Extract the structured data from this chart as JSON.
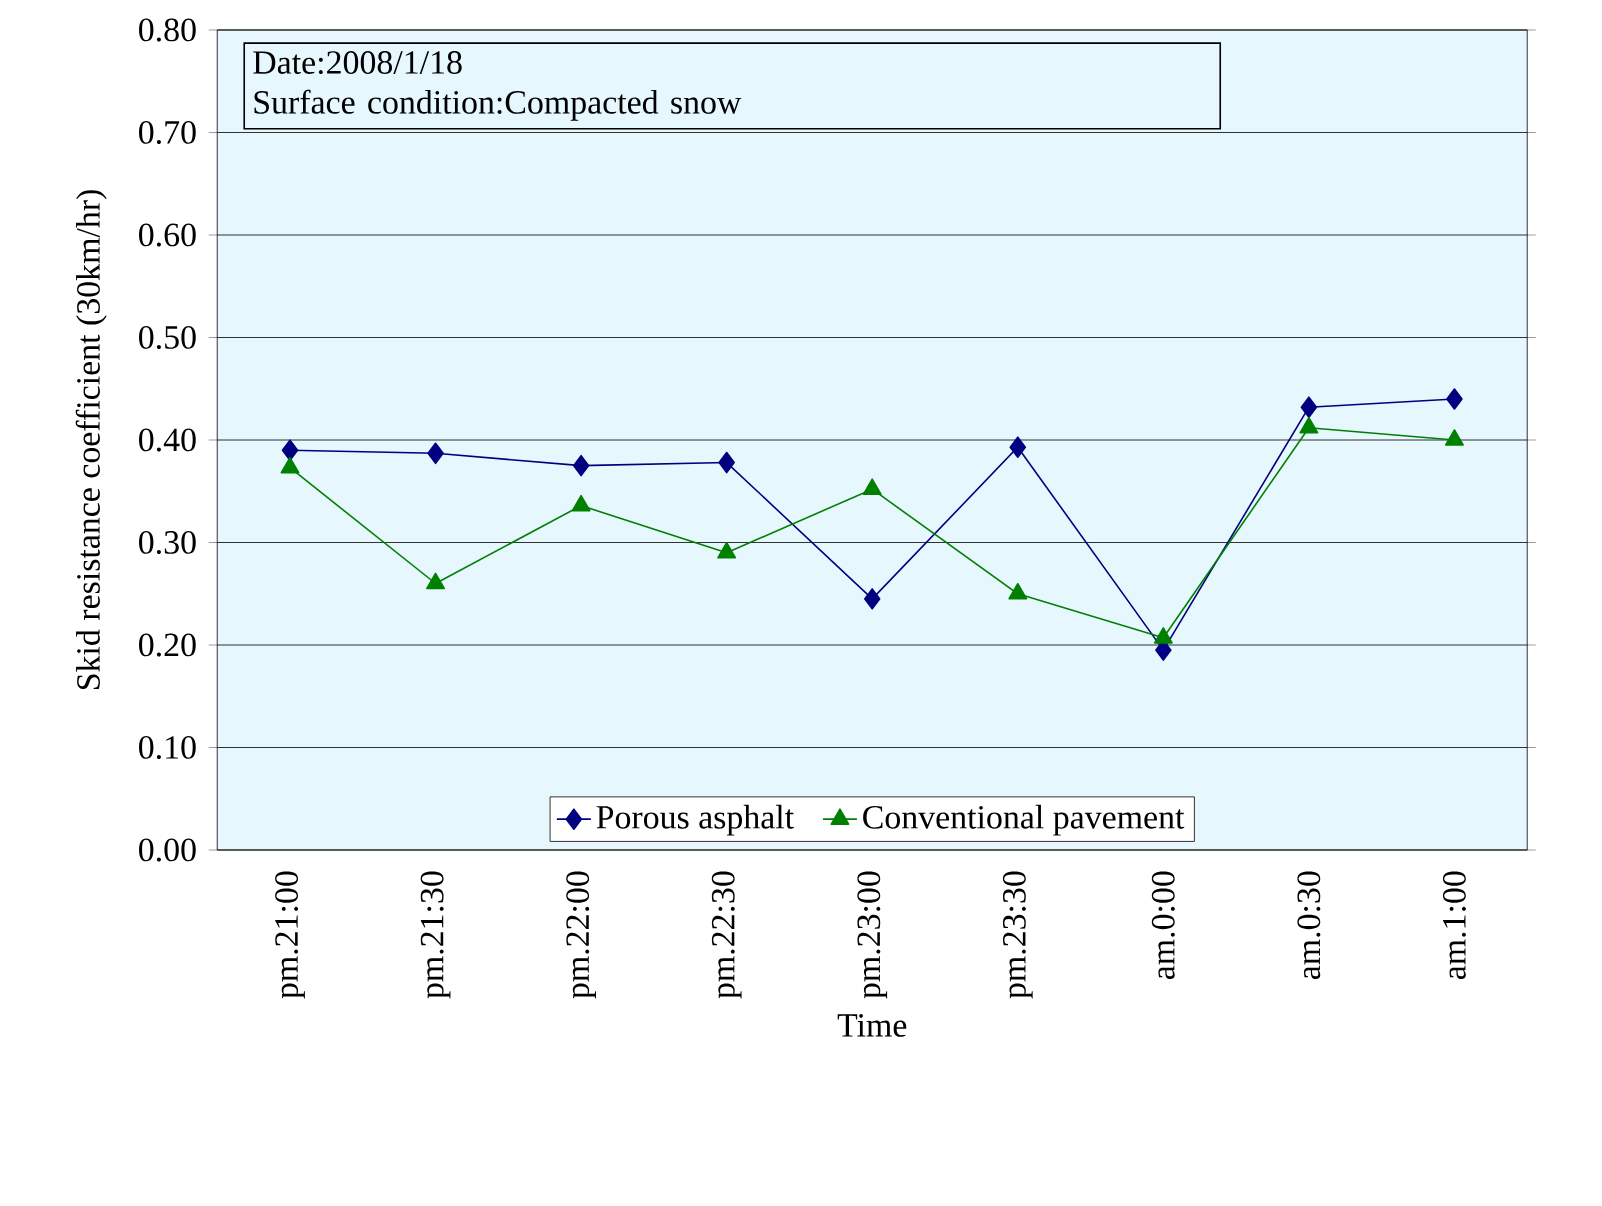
{
  "chart_data": {
    "type": "line",
    "xlabel": "Time",
    "ylabel": "Skid resistance coefficient (30km/hr)",
    "categories": [
      "pm.21:00",
      "pm.21:30",
      "pm.22:00",
      "pm.22:30",
      "pm.23:00",
      "pm.23:30",
      "am.0:00",
      "am.0:30",
      "am.1:00"
    ],
    "series": [
      {
        "name": "Porous asphalt",
        "color": "#000080",
        "marker": "diamond",
        "values": [
          0.39,
          0.387,
          0.375,
          0.378,
          0.245,
          0.393,
          0.195,
          0.432,
          0.44
        ]
      },
      {
        "name": "Conventional pavement",
        "color": "#008000",
        "marker": "triangle",
        "values": [
          0.373,
          0.26,
          0.336,
          0.29,
          0.352,
          0.25,
          0.207,
          0.412,
          0.4
        ]
      }
    ],
    "ylim": [
      0,
      0.8
    ],
    "yticks": [
      {
        "value": 0,
        "label": "0.00"
      },
      {
        "value": 0.1,
        "label": "0.10"
      },
      {
        "value": 0.2,
        "label": "0.20"
      },
      {
        "value": 0.3,
        "label": "0.30"
      },
      {
        "value": 0.4,
        "label": "0.40"
      },
      {
        "value": 0.5,
        "label": "0.50"
      },
      {
        "value": 0.6,
        "label": "0.60"
      },
      {
        "value": 0.7,
        "label": "0.70"
      },
      {
        "value": 0.8,
        "label": "0.80"
      }
    ],
    "grid": "y",
    "legend": "bottom",
    "line_style": "solid",
    "annotations": [
      "Date:2008/1/18",
      "Surface condition:Compacted snow"
    ]
  }
}
